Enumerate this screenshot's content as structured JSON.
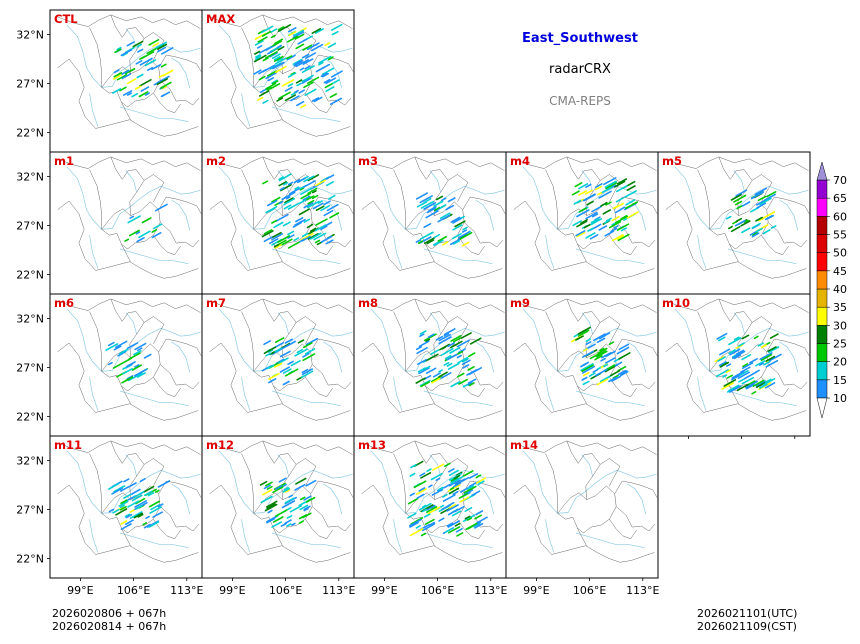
{
  "header": {
    "region": "East_Southwest",
    "variable": "radarCRX",
    "model": "CMA-REPS"
  },
  "footer": {
    "init_utc": "2026020806  +  067h",
    "init_cst": "2026020814  +  067h",
    "valid_utc": "2026021101(UTC)",
    "valid_cst": "2026021109(CST)"
  },
  "colors": {
    "panel_label": "#e00000",
    "title": "#0000dd",
    "model": "#808080"
  },
  "chart_data": {
    "type": "heatmap",
    "description_axes": {
      "xticks": [
        99,
        106,
        113
      ],
      "xtick_labels": [
        "99°E",
        "106°E",
        "113°E"
      ],
      "yticks": [
        22,
        27,
        32
      ],
      "ytick_labels": [
        "22°N",
        "27°N",
        "32°N"
      ],
      "xlim": [
        95,
        115
      ],
      "ylim": [
        20,
        34.5
      ]
    },
    "panels": [
      {
        "label": "CTL",
        "row": 0,
        "col": 0,
        "intensity": 0.45,
        "center": [
          106.5,
          28.3
        ]
      },
      {
        "label": "MAX",
        "row": 0,
        "col": 1,
        "intensity": 1.0,
        "center": [
          107.0,
          28.5
        ]
      },
      {
        "label": "m1",
        "row": 1,
        "col": 0,
        "intensity": 0.05,
        "center": [
          107.0,
          27.0
        ]
      },
      {
        "label": "m2",
        "row": 1,
        "col": 1,
        "intensity": 0.8,
        "center": [
          107.5,
          28.2
        ]
      },
      {
        "label": "m3",
        "row": 1,
        "col": 2,
        "intensity": 0.35,
        "center": [
          106.3,
          27.3
        ]
      },
      {
        "label": "m4",
        "row": 1,
        "col": 3,
        "intensity": 0.6,
        "center": [
          107.5,
          28.5
        ]
      },
      {
        "label": "m5",
        "row": 1,
        "col": 4,
        "intensity": 0.3,
        "center": [
          107.0,
          28.0
        ]
      },
      {
        "label": "m6",
        "row": 2,
        "col": 0,
        "intensity": 0.2,
        "center": [
          105.0,
          27.3
        ]
      },
      {
        "label": "m7",
        "row": 2,
        "col": 1,
        "intensity": 0.3,
        "center": [
          105.8,
          27.5
        ]
      },
      {
        "label": "m8",
        "row": 2,
        "col": 2,
        "intensity": 0.5,
        "center": [
          106.8,
          27.8
        ]
      },
      {
        "label": "m9",
        "row": 2,
        "col": 3,
        "intensity": 0.45,
        "center": [
          106.8,
          27.8
        ]
      },
      {
        "label": "m10",
        "row": 2,
        "col": 4,
        "intensity": 0.55,
        "center": [
          106.3,
          27.2
        ]
      },
      {
        "label": "m11",
        "row": 3,
        "col": 0,
        "intensity": 0.4,
        "center": [
          106.0,
          27.5
        ]
      },
      {
        "label": "m12",
        "row": 3,
        "col": 1,
        "intensity": 0.35,
        "center": [
          105.8,
          27.5
        ]
      },
      {
        "label": "m13",
        "row": 3,
        "col": 2,
        "intensity": 0.85,
        "center": [
          106.8,
          27.8
        ]
      },
      {
        "label": "m14",
        "row": 3,
        "col": 3,
        "intensity": 0.0,
        "center": [
          106.0,
          27.0
        ]
      }
    ],
    "colorbar": {
      "levels": [
        10,
        15,
        20,
        25,
        30,
        35,
        40,
        45,
        50,
        55,
        60,
        65,
        70
      ],
      "labels": [
        "10",
        "15",
        "20",
        "25",
        "30",
        "35",
        "40",
        "45",
        "50",
        "55",
        "60",
        "65",
        "70"
      ],
      "colors": [
        "#1e90ff",
        "#00ced1",
        "#00c800",
        "#008000",
        "#ffff00",
        "#e6b400",
        "#ff8c00",
        "#ff0000",
        "#dc0000",
        "#b40000",
        "#ff00ff",
        "#9400d3",
        "#a090d8"
      ]
    }
  }
}
